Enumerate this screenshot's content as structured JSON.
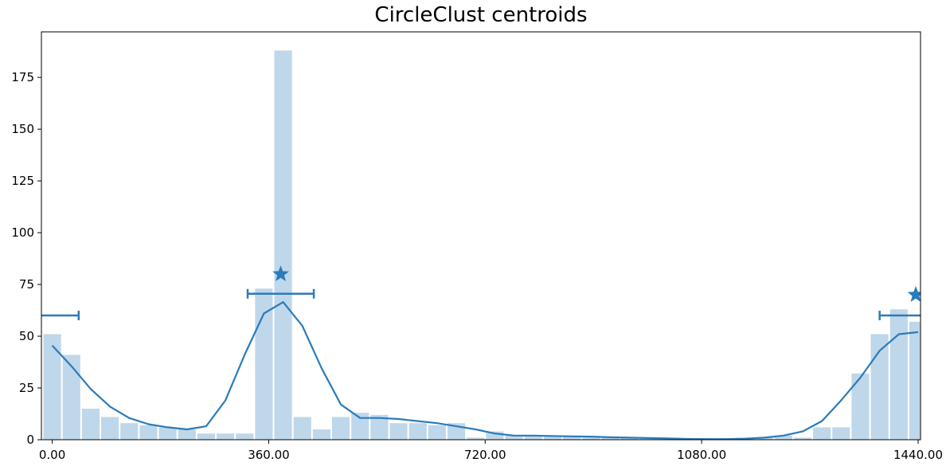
{
  "chart_data": {
    "type": "bar",
    "title": "CircleClust centroids",
    "xlabel": "",
    "ylabel": "",
    "xlim": [
      -18,
      1444
    ],
    "ylim": [
      0,
      197
    ],
    "x_ticks": [
      "0.00",
      "360.00",
      "720.00",
      "1080.00",
      "1440.00"
    ],
    "x_tick_values": [
      0,
      360,
      720,
      1080,
      1440
    ],
    "y_ticks": [
      "0",
      "25",
      "50",
      "75",
      "100",
      "125",
      "150",
      "175"
    ],
    "y_tick_values": [
      0,
      25,
      50,
      75,
      100,
      125,
      150,
      175
    ],
    "grid": false,
    "bar_color": "#bfd7ea",
    "line_color": "#2b7bba",
    "bin_width": 32,
    "histogram": {
      "name": "",
      "bin_starts": [
        -16,
        16,
        48,
        80,
        112,
        144,
        176,
        208,
        240,
        272,
        304,
        336,
        368,
        400,
        432,
        464,
        496,
        528,
        560,
        592,
        624,
        656,
        688,
        720,
        752,
        784,
        816,
        848,
        880,
        912,
        944,
        976,
        1008,
        1040,
        1072,
        1104,
        1136,
        1168,
        1200,
        1232,
        1264,
        1296,
        1328,
        1360,
        1392,
        1424
      ],
      "values": [
        51,
        41,
        15,
        11,
        8,
        7,
        6,
        5,
        3,
        3,
        3,
        73,
        188,
        11,
        5,
        11,
        13,
        12,
        8,
        8,
        7,
        8,
        1,
        4,
        2,
        2,
        2,
        2,
        1,
        1,
        1,
        1,
        0,
        0,
        0,
        0,
        1,
        1,
        2,
        1,
        6,
        6,
        32,
        51,
        63,
        57
      ]
    },
    "density_curve": {
      "name": "",
      "x": [
        0,
        32,
        64,
        96,
        128,
        160,
        192,
        224,
        256,
        288,
        320,
        352,
        384,
        416,
        448,
        480,
        512,
        544,
        576,
        608,
        640,
        672,
        704,
        736,
        768,
        800,
        832,
        864,
        896,
        928,
        960,
        992,
        1024,
        1056,
        1088,
        1120,
        1152,
        1184,
        1216,
        1248,
        1280,
        1312,
        1344,
        1376,
        1408,
        1440
      ],
      "y": [
        45.5,
        35.5,
        24.5,
        16,
        10.5,
        7.5,
        6,
        5,
        6.5,
        19,
        41,
        61,
        66.5,
        55,
        34.5,
        17,
        10.5,
        10.5,
        10,
        9,
        8,
        6.5,
        5,
        3,
        2,
        2,
        1.8,
        1.6,
        1.5,
        1.2,
        1,
        0.8,
        0.6,
        0.4,
        0.3,
        0.3,
        0.5,
        1,
        2,
        4,
        9,
        19,
        30,
        43,
        51,
        52
      ]
    },
    "centroids": [
      {
        "x": 380,
        "y": 80
      },
      {
        "x": 1436,
        "y": 70
      }
    ],
    "error_bars": [
      {
        "center": 380,
        "y": 70.5,
        "low": 325,
        "high": 435
      },
      {
        "center": 1436,
        "y": 60,
        "low": 1376,
        "high": 1496
      },
      {
        "center": -20,
        "y": 60,
        "low": -80,
        "high": 44
      }
    ]
  }
}
